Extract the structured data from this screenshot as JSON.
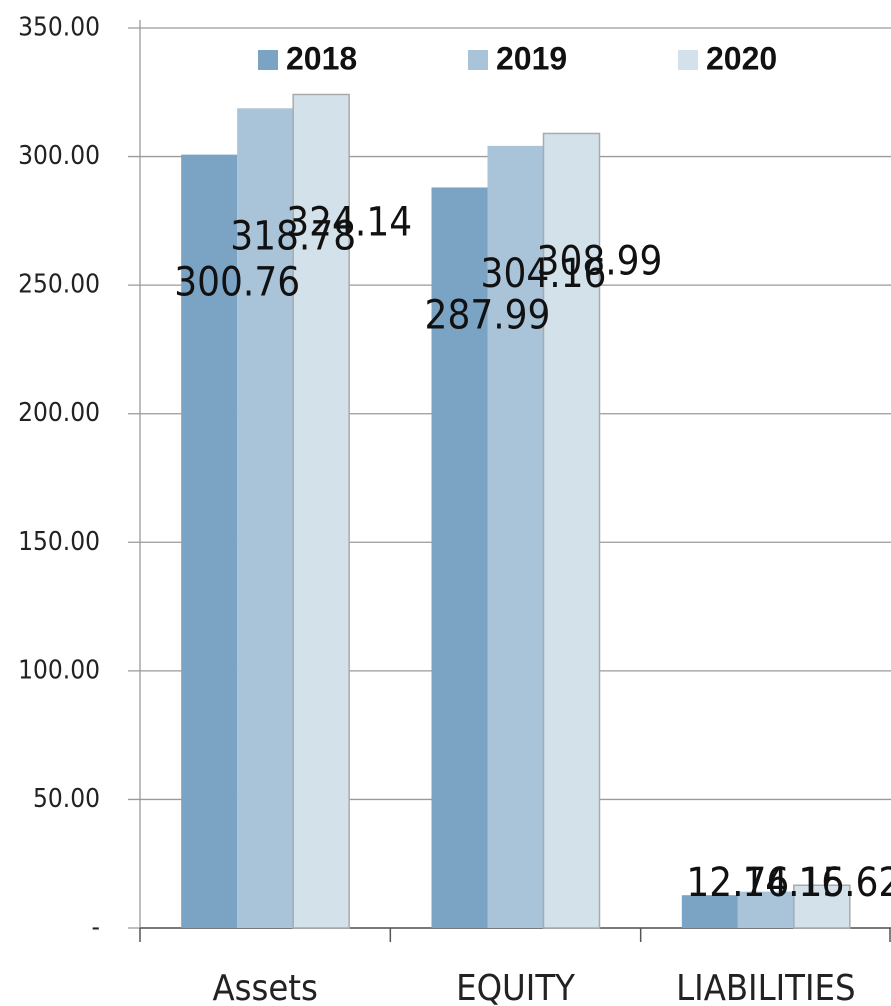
{
  "chart_data": {
    "type": "bar",
    "categories": [
      "Assets",
      "EQUITY",
      "LIABILITIES"
    ],
    "series": [
      {
        "name": "2018",
        "color": "#7ba3c4",
        "values": [
          300.76,
          287.99,
          12.76
        ]
      },
      {
        "name": "2019",
        "color": "#a9c3d9",
        "values": [
          318.78,
          304.16,
          14.15
        ]
      },
      {
        "name": "2020",
        "color": "#d3e1eb",
        "values": [
          324.14,
          308.99,
          16.62
        ]
      }
    ],
    "ylim": [
      0,
      350
    ],
    "yticks": [
      {
        "value": 0,
        "label": "-"
      },
      {
        "value": 50,
        "label": "50.00"
      },
      {
        "value": 100,
        "label": "100.00"
      },
      {
        "value": 150,
        "label": "150.00"
      },
      {
        "value": 200,
        "label": "200.00"
      },
      {
        "value": 250,
        "label": "250.00"
      },
      {
        "value": 300,
        "label": "300.00"
      },
      {
        "value": 350,
        "label": "350.00"
      }
    ],
    "grid": true,
    "legend": "top"
  }
}
